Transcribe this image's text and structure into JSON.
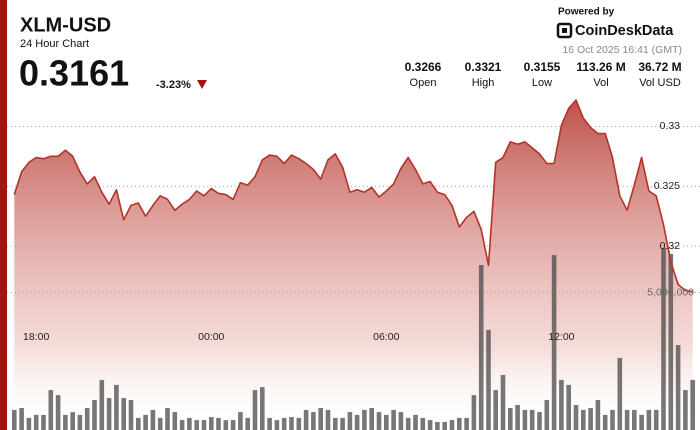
{
  "header": {
    "title": "XLM-USD",
    "subtitle": "24 Hour Chart",
    "price": "0.3161",
    "change": "-3.23%",
    "powered": "Powered by",
    "brand": "CoinDeskData",
    "timestamp": "16 Oct 2025 16:41 (GMT)"
  },
  "stats": [
    {
      "value": "0.3266",
      "label": "Open"
    },
    {
      "value": "0.3321",
      "label": "High"
    },
    {
      "value": "0.3155",
      "label": "Low"
    },
    {
      "value": "113.26 M",
      "label": "Vol"
    },
    {
      "value": "36.72 M",
      "label": "Vol USD"
    }
  ],
  "chart_data": {
    "type": "line",
    "x": [
      17.25,
      17.5,
      17.75,
      18,
      18.25,
      18.5,
      18.75,
      19,
      19.25,
      19.5,
      19.75,
      20,
      20.25,
      20.5,
      20.75,
      21,
      21.25,
      21.5,
      21.75,
      22,
      22.25,
      22.5,
      22.75,
      23,
      23.25,
      23.5,
      23.75,
      24,
      24.25,
      24.5,
      24.75,
      25,
      25.25,
      25.5,
      25.75,
      26,
      26.25,
      26.5,
      26.75,
      27,
      27.25,
      27.5,
      27.75,
      28,
      28.25,
      28.5,
      28.75,
      29,
      29.25,
      29.5,
      29.75,
      30,
      30.25,
      30.5,
      30.75,
      31,
      31.25,
      31.5,
      31.75,
      32,
      32.25,
      32.5,
      32.75,
      33,
      33.25,
      33.5,
      33.75,
      34,
      34.25,
      34.5,
      34.75,
      35,
      35.25,
      35.5,
      35.75,
      36,
      36.25,
      36.5,
      36.75,
      37,
      37.25,
      37.5,
      37.75,
      38,
      38.25,
      38.5,
      38.75,
      39,
      39.25,
      39.5,
      39.75,
      40,
      40.25,
      40.5
    ],
    "values": [
      0.3243,
      0.3262,
      0.327,
      0.3274,
      0.3273,
      0.3275,
      0.3275,
      0.328,
      0.3275,
      0.3262,
      0.3252,
      0.3258,
      0.3245,
      0.3235,
      0.3247,
      0.3222,
      0.3234,
      0.3236,
      0.3225,
      0.3234,
      0.3242,
      0.3239,
      0.323,
      0.3235,
      0.3239,
      0.3246,
      0.3242,
      0.3248,
      0.3244,
      0.3243,
      0.3239,
      0.3253,
      0.3251,
      0.3258,
      0.3272,
      0.3276,
      0.3275,
      0.3269,
      0.3276,
      0.3273,
      0.3269,
      0.3264,
      0.3256,
      0.3272,
      0.3277,
      0.3266,
      0.3245,
      0.3247,
      0.3245,
      0.3249,
      0.3241,
      0.3246,
      0.3252,
      0.3265,
      0.3274,
      0.3264,
      0.3252,
      0.3254,
      0.3245,
      0.3243,
      0.3234,
      0.3216,
      0.3224,
      0.3229,
      0.3214,
      0.3184,
      0.327,
      0.3274,
      0.3287,
      0.3285,
      0.3287,
      0.3282,
      0.3277,
      0.3269,
      0.3269,
      0.3301,
      0.3315,
      0.3322,
      0.3307,
      0.3299,
      0.3294,
      0.3294,
      0.3274,
      0.3242,
      0.323,
      0.3251,
      0.3274,
      0.3246,
      0.3242,
      0.3218,
      0.3187,
      0.3168,
      0.3163,
      0.3162
    ],
    "volume": [
      730000,
      800000,
      440000,
      550000,
      550000,
      1450000,
      1270000,
      550000,
      650000,
      550000,
      800000,
      1090000,
      1820000,
      1160000,
      1640000,
      1160000,
      1090000,
      440000,
      550000,
      730000,
      440000,
      800000,
      650000,
      360000,
      440000,
      360000,
      360000,
      470000,
      440000,
      360000,
      360000,
      650000,
      440000,
      1450000,
      1560000,
      440000,
      360000,
      440000,
      470000,
      440000,
      730000,
      650000,
      800000,
      730000,
      440000,
      440000,
      650000,
      550000,
      730000,
      800000,
      650000,
      550000,
      730000,
      650000,
      440000,
      550000,
      440000,
      360000,
      290000,
      290000,
      360000,
      440000,
      440000,
      1270000,
      6000000,
      3640000,
      1450000,
      2000000,
      800000,
      910000,
      730000,
      730000,
      650000,
      1090000,
      6360000,
      1820000,
      1640000,
      910000,
      730000,
      800000,
      1090000,
      550000,
      730000,
      2620000,
      730000,
      730000,
      550000,
      730000,
      730000,
      6620000,
      6400000,
      3090000,
      1450000,
      1820000
    ],
    "color": "#b3322a",
    "volume_color": "#4a4a4a",
    "xlim": [
      17,
      40.75
    ],
    "xticks": [
      {
        "value": 18,
        "label": "18:00"
      },
      {
        "value": 24,
        "label": "00:00"
      },
      {
        "value": 30,
        "label": "06:00"
      },
      {
        "value": 36,
        "label": "12:00"
      }
    ],
    "ylim": [
      0.313,
      0.3322
    ],
    "yticks": [
      0.32,
      0.325,
      0.33
    ],
    "y2lim": [
      0,
      12000000
    ],
    "y2ticks": [
      {
        "value": 5000000,
        "label": "5,000,000"
      }
    ],
    "grid": true
  }
}
